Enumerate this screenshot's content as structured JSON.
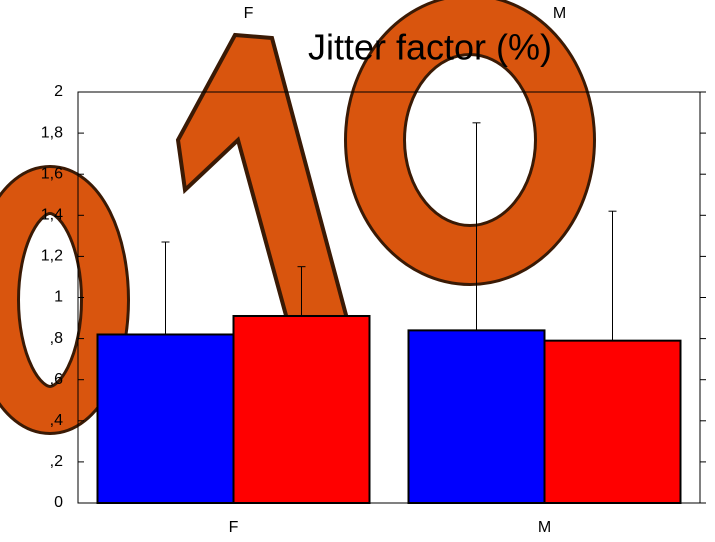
{
  "chart_data": {
    "type": "bar",
    "title": "Jitter factor (%)",
    "categories": [
      "F",
      "M"
    ],
    "x2_categories": [
      "F",
      "M"
    ],
    "series": [
      {
        "color": "#0000ff",
        "values": [
          0.82,
          0.84
        ],
        "errors": [
          0.45,
          1.01
        ]
      },
      {
        "color": "#ff0000",
        "values": [
          0.91,
          0.79
        ],
        "errors": [
          0.24,
          0.63
        ]
      }
    ],
    "ylim": [
      0,
      2
    ],
    "yticks": [
      0,
      {
        "value": 0.2,
        "label": ",2"
      },
      {
        "value": 0.4,
        "label": ",4"
      },
      {
        "value": 0.6,
        "label": ",6"
      },
      {
        "value": 0.8,
        "label": ",8"
      },
      1,
      {
        "value": 1.2,
        "label": "1,2"
      },
      {
        "value": 1.4,
        "label": "1,4"
      },
      {
        "value": 1.6,
        "label": "1,6"
      },
      {
        "value": 1.8,
        "label": "1,8"
      },
      2
    ]
  }
}
